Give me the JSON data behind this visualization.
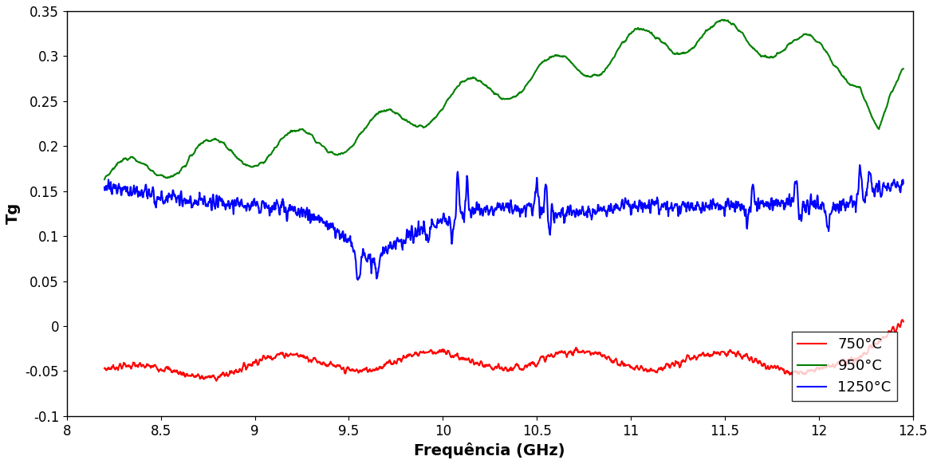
{
  "title": "",
  "xlabel": "Frequência (GHz)",
  "ylabel": "Tg",
  "xlim": [
    8.0,
    12.5
  ],
  "ylim": [
    -0.1,
    0.35
  ],
  "xticks": [
    8.0,
    8.5,
    9.0,
    9.5,
    10.0,
    10.5,
    11.0,
    11.5,
    12.0,
    12.5
  ],
  "yticks": [
    -0.1,
    -0.05,
    0.0,
    0.05,
    0.1,
    0.15,
    0.2,
    0.25,
    0.3,
    0.35
  ],
  "legend": [
    "750°C",
    "950°C",
    "1250°C"
  ],
  "colors": [
    "#ff0000",
    "#008000",
    "#0000ff"
  ],
  "legend_loc": "lower right",
  "xlabel_fontsize": 14,
  "ylabel_fontsize": 14,
  "legend_fontsize": 13,
  "tick_fontsize": 12,
  "linewidth": 1.5
}
